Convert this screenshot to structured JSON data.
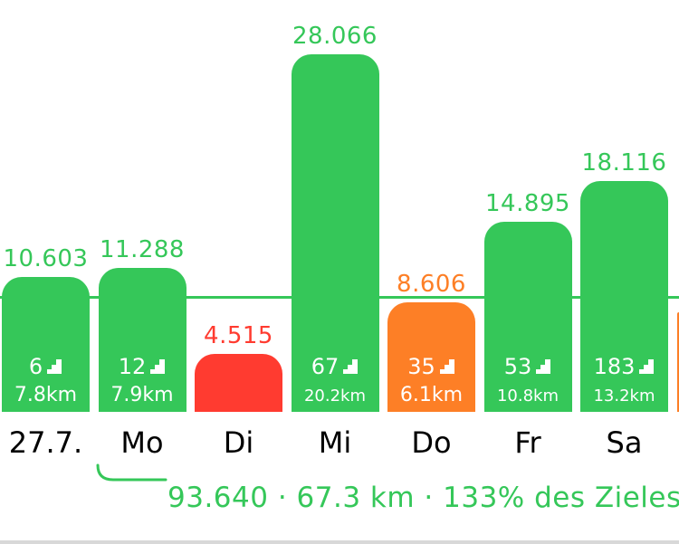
{
  "colors": {
    "green": "#35c759",
    "red": "#ff3b30",
    "orange": "#fd7f26",
    "text": "#000000",
    "white": "#ffffff"
  },
  "chart_data": {
    "type": "bar",
    "goal": 9000,
    "categories": [
      "27.7.",
      "Mo",
      "Di",
      "Mi",
      "Do",
      "Fr",
      "Sa"
    ],
    "values": [
      10603,
      11288,
      4515,
      28066,
      8606,
      14895,
      18116
    ],
    "value_labels": [
      "10.603",
      "11.288",
      "4.515",
      "28.066",
      "8.606",
      "14.895",
      "18.116"
    ],
    "floors": [
      "6",
      "12",
      "",
      "67",
      "35",
      "53",
      "183"
    ],
    "distances": [
      "7.8km",
      "7.9km",
      "",
      "20.2km",
      "6.1km",
      "10.8km",
      "13.2km"
    ],
    "statuses": [
      "green",
      "green",
      "red",
      "green",
      "orange",
      "green",
      "green"
    ],
    "partial_next_status": "orange",
    "icon": "stairs-icon",
    "grid": false
  },
  "summary": {
    "text": "93.640 · 67.3 km · 133% des Zieles"
  }
}
